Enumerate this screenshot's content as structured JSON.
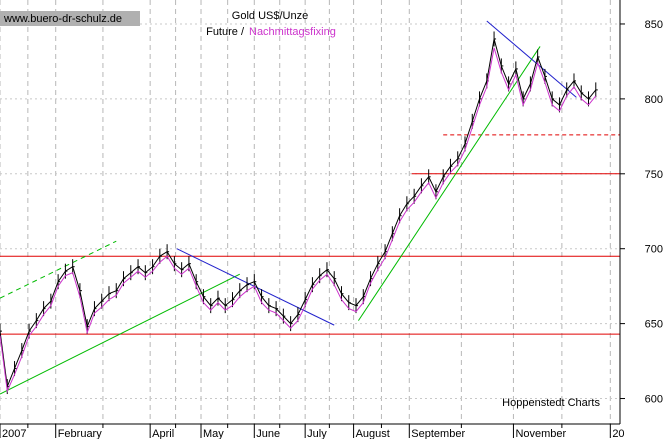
{
  "chart_data": {
    "type": "line",
    "title": "Gold US$/Unze",
    "subtitle_future": "Future /",
    "subtitle_fixing": "Nachmittagsfixing",
    "source_label": "www.buero-dr-schulz.de",
    "credit": "Hoppenstedt Charts",
    "xlabel": "",
    "ylabel": "",
    "ylim": [
      583,
      866
    ],
    "y_ticks": [
      600,
      650,
      700,
      750,
      800,
      850
    ],
    "x_ticks": [
      {
        "label": "2007",
        "t": 0
      },
      {
        "label": "February",
        "t": 23
      },
      {
        "label": "April",
        "t": 62
      },
      {
        "label": "May",
        "t": 83
      },
      {
        "label": "June",
        "t": 105
      },
      {
        "label": "July",
        "t": 126
      },
      {
        "label": "August",
        "t": 146
      },
      {
        "label": "September",
        "t": 169
      },
      {
        "label": "November",
        "t": 212
      },
      {
        "label": "20",
        "t": 252
      }
    ],
    "x_range": [
      0,
      256
    ],
    "grid": true,
    "series": [
      {
        "name": "Future",
        "color": "#000000",
        "x": [
          0,
          3,
          6,
          9,
          12,
          15,
          18,
          21,
          24,
          27,
          30,
          33,
          36,
          39,
          42,
          45,
          48,
          51,
          54,
          57,
          60,
          63,
          66,
          69,
          72,
          75,
          78,
          81,
          84,
          87,
          90,
          93,
          96,
          99,
          102,
          105,
          108,
          111,
          114,
          117,
          120,
          123,
          126,
          129,
          132,
          135,
          138,
          141,
          144,
          147,
          150,
          153,
          156,
          159,
          162,
          165,
          168,
          171,
          174,
          177,
          180,
          183,
          186,
          189,
          192,
          195,
          198,
          201,
          204,
          207,
          210,
          213,
          216,
          219,
          222,
          225,
          228,
          231,
          234,
          237,
          240,
          243,
          246
        ],
        "values": [
          645,
          608,
          620,
          632,
          645,
          652,
          660,
          665,
          678,
          685,
          688,
          672,
          648,
          660,
          665,
          670,
          672,
          680,
          684,
          688,
          684,
          688,
          695,
          698,
          690,
          686,
          690,
          678,
          668,
          662,
          667,
          662,
          666,
          672,
          676,
          678,
          668,
          662,
          660,
          655,
          650,
          656,
          666,
          676,
          682,
          686,
          680,
          670,
          664,
          662,
          668,
          680,
          690,
          698,
          710,
          722,
          730,
          735,
          742,
          748,
          738,
          748,
          755,
          760,
          770,
          785,
          800,
          812,
          840,
          822,
          810,
          820,
          800,
          810,
          828,
          815,
          800,
          796,
          806,
          812,
          804,
          800,
          806
        ]
      },
      {
        "name": "Nachmittagsfixing",
        "color": "#cc33cc",
        "x": [
          0,
          3,
          6,
          9,
          12,
          15,
          18,
          21,
          24,
          27,
          30,
          33,
          36,
          39,
          42,
          45,
          48,
          51,
          54,
          57,
          60,
          63,
          66,
          69,
          72,
          75,
          78,
          81,
          84,
          87,
          90,
          93,
          96,
          99,
          102,
          105,
          108,
          111,
          114,
          117,
          120,
          123,
          126,
          129,
          132,
          135,
          138,
          141,
          144,
          147,
          150,
          153,
          156,
          159,
          162,
          165,
          168,
          171,
          174,
          177,
          180,
          183,
          186,
          189,
          192,
          195,
          198,
          201,
          204,
          207,
          210,
          213,
          216,
          219,
          222,
          225,
          228,
          231,
          234,
          237,
          240,
          243,
          246
        ],
        "values": [
          642,
          605,
          616,
          628,
          642,
          648,
          656,
          662,
          675,
          682,
          684,
          668,
          644,
          657,
          661,
          666,
          669,
          677,
          681,
          685,
          681,
          685,
          691,
          695,
          687,
          683,
          687,
          675,
          664,
          659,
          664,
          659,
          662,
          668,
          672,
          675,
          664,
          659,
          657,
          652,
          647,
          652,
          662,
          673,
          679,
          683,
          676,
          666,
          660,
          658,
          664,
          677,
          686,
          694,
          706,
          718,
          726,
          731,
          738,
          744,
          734,
          744,
          751,
          756,
          766,
          781,
          796,
          808,
          834,
          818,
          806,
          816,
          796,
          806,
          824,
          811,
          796,
          792,
          802,
          808,
          800,
          796,
          802
        ]
      }
    ],
    "horizontal_lines": [
      {
        "y": 695,
        "color": "#e00000",
        "style": "solid"
      },
      {
        "y": 643,
        "color": "#e00000",
        "style": "solid"
      },
      {
        "y": 750,
        "color": "#e00000",
        "style": "solid",
        "t_from": 170
      },
      {
        "y": 776,
        "color": "#e00000",
        "style": "dashed",
        "t_from": 183
      }
    ],
    "trend_lines": [
      {
        "color": "#00bb00",
        "style": "solid",
        "from": [
          0,
          603
        ],
        "to": [
          99,
          683
        ]
      },
      {
        "color": "#00bb00",
        "style": "dashed",
        "from": [
          0,
          667
        ],
        "to": [
          48,
          705
        ]
      },
      {
        "color": "#2222cc",
        "style": "solid",
        "from": [
          73,
          700
        ],
        "to": [
          138,
          649
        ]
      },
      {
        "color": "#00bb00",
        "style": "solid",
        "from": [
          148,
          652
        ],
        "to": [
          223,
          835
        ]
      },
      {
        "color": "#2222cc",
        "style": "solid",
        "from": [
          201,
          852
        ],
        "to": [
          238,
          801
        ]
      }
    ]
  }
}
